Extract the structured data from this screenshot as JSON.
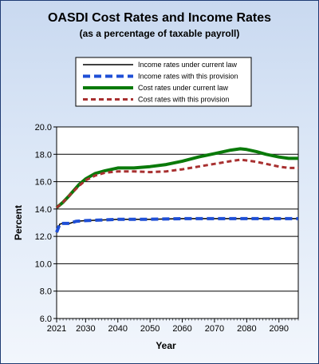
{
  "chart_data": {
    "type": "line",
    "title": "OASDI Cost Rates and Income Rates",
    "subtitle": "(as a percentage of taxable payroll)",
    "xlabel": "Year",
    "ylabel": "Percent",
    "xlim": [
      2021,
      2096
    ],
    "ylim": [
      6.0,
      20.0
    ],
    "xticks": [
      2021,
      2030,
      2040,
      2050,
      2060,
      2070,
      2080,
      2090
    ],
    "yticks": [
      "6.0",
      "8.0",
      "10.0",
      "12.0",
      "14.0",
      "16.0",
      "18.0",
      "20.0"
    ],
    "grid": true,
    "legend_position": "top",
    "series": [
      {
        "name": "Income rates under current law",
        "color": "#000000",
        "style": "solid",
        "x": [
          2021,
          2022,
          2023,
          2025,
          2027,
          2030,
          2035,
          2040,
          2050,
          2060,
          2070,
          2080,
          2090,
          2096
        ],
        "y": [
          12.3,
          12.9,
          12.95,
          12.95,
          13.1,
          13.15,
          13.2,
          13.25,
          13.25,
          13.3,
          13.3,
          13.3,
          13.3,
          13.3
        ]
      },
      {
        "name": "Income rates with this provision",
        "color": "#1f4fd6",
        "style": "dashed",
        "x": [
          2021,
          2022,
          2023,
          2025,
          2027,
          2030,
          2035,
          2040,
          2050,
          2060,
          2070,
          2080,
          2090,
          2096
        ],
        "y": [
          12.3,
          12.9,
          12.95,
          12.95,
          13.1,
          13.15,
          13.2,
          13.25,
          13.25,
          13.3,
          13.3,
          13.3,
          13.3,
          13.3
        ]
      },
      {
        "name": "Cost rates under current law",
        "color": "#0a7a0a",
        "style": "solid",
        "x": [
          2021,
          2023,
          2025,
          2028,
          2030,
          2033,
          2036,
          2040,
          2045,
          2050,
          2055,
          2060,
          2065,
          2070,
          2075,
          2078,
          2080,
          2083,
          2086,
          2090,
          2093,
          2096
        ],
        "y": [
          14.1,
          14.5,
          15.0,
          15.8,
          16.2,
          16.6,
          16.8,
          17.0,
          17.0,
          17.1,
          17.25,
          17.5,
          17.8,
          18.05,
          18.3,
          18.4,
          18.35,
          18.2,
          18.0,
          17.8,
          17.7,
          17.7
        ]
      },
      {
        "name": "Cost rates with this provision",
        "color": "#a83030",
        "style": "dashed",
        "x": [
          2021,
          2023,
          2025,
          2028,
          2030,
          2033,
          2036,
          2040,
          2045,
          2050,
          2055,
          2060,
          2065,
          2070,
          2075,
          2078,
          2080,
          2083,
          2086,
          2090,
          2093,
          2096
        ],
        "y": [
          14.1,
          14.5,
          15.0,
          15.7,
          16.1,
          16.45,
          16.65,
          16.75,
          16.75,
          16.7,
          16.75,
          16.9,
          17.1,
          17.3,
          17.5,
          17.6,
          17.55,
          17.45,
          17.3,
          17.1,
          17.0,
          17.0
        ]
      }
    ]
  }
}
